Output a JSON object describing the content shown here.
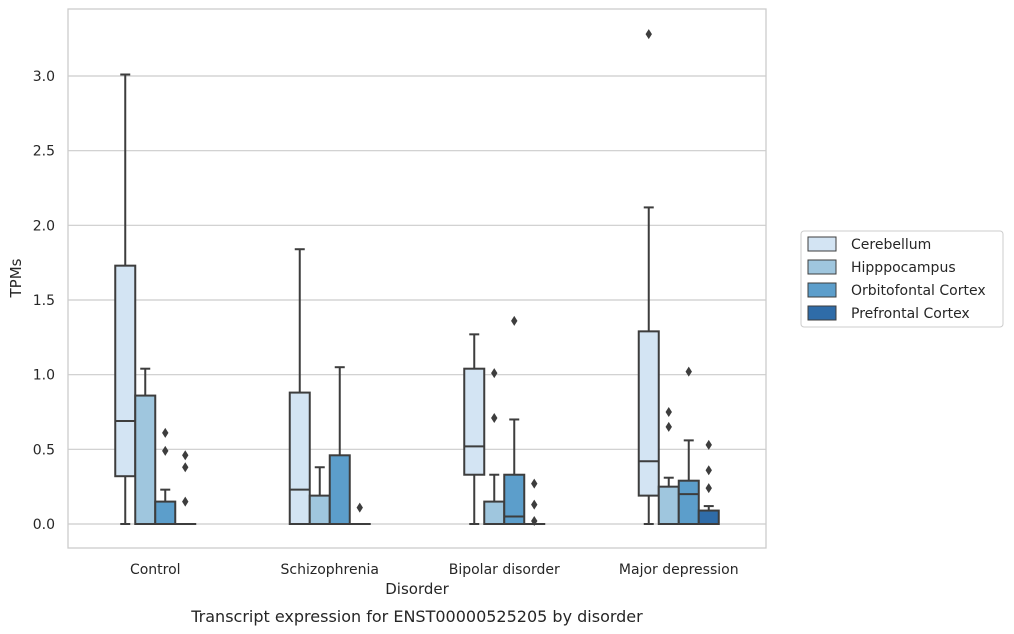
{
  "chart_data": {
    "type": "box",
    "title": "",
    "caption": "Transcript expression for ENST00000525205 by disorder",
    "xlabel": "Disorder",
    "ylabel": "TPMs",
    "ylim": [
      -0.16,
      3.45
    ],
    "yticks": [
      0.0,
      0.5,
      1.0,
      1.5,
      2.0,
      2.5,
      3.0
    ],
    "ytick_labels": [
      "0.0",
      "0.5",
      "1.0",
      "1.5",
      "2.0",
      "2.5",
      "3.0"
    ],
    "grid": "horizontal",
    "legend_position": "right",
    "categories": [
      "Control",
      "Schizophrenia",
      "Bipolar disorder",
      "Major depression"
    ],
    "series": [
      {
        "name": "Cerebellum",
        "color": "#d3e4f3",
        "boxes": [
          {
            "whisker_low": 0.0,
            "q1": 0.32,
            "median": 0.69,
            "q3": 1.73,
            "whisker_high": 3.01,
            "outliers": []
          },
          {
            "whisker_low": 0.0,
            "q1": 0.0,
            "median": 0.23,
            "q3": 0.88,
            "whisker_high": 1.84,
            "outliers": []
          },
          {
            "whisker_low": 0.0,
            "q1": 0.33,
            "median": 0.52,
            "q3": 1.04,
            "whisker_high": 1.27,
            "outliers": []
          },
          {
            "whisker_low": 0.0,
            "q1": 0.19,
            "median": 0.42,
            "q3": 1.29,
            "whisker_high": 2.12,
            "outliers": [
              3.28
            ]
          }
        ]
      },
      {
        "name": "Hipppocampus",
        "color": "#9fc6de",
        "boxes": [
          {
            "whisker_low": 0.0,
            "q1": 0.0,
            "median": 0.0,
            "q3": 0.86,
            "whisker_high": 1.04,
            "outliers": []
          },
          {
            "whisker_low": 0.0,
            "q1": 0.0,
            "median": 0.0,
            "q3": 0.19,
            "whisker_high": 0.38,
            "outliers": []
          },
          {
            "whisker_low": 0.0,
            "q1": 0.0,
            "median": 0.0,
            "q3": 0.15,
            "whisker_high": 0.33,
            "outliers": [
              0.71,
              1.01
            ]
          },
          {
            "whisker_low": 0.0,
            "q1": 0.0,
            "median": 0.0,
            "q3": 0.25,
            "whisker_high": 0.31,
            "outliers": [
              0.65,
              0.75
            ]
          }
        ]
      },
      {
        "name": "Orbitofontal Cortex",
        "color": "#5c9ecb",
        "boxes": [
          {
            "whisker_low": 0.0,
            "q1": 0.0,
            "median": 0.0,
            "q3": 0.15,
            "whisker_high": 0.23,
            "outliers": [
              0.49,
              0.61
            ]
          },
          {
            "whisker_low": 0.0,
            "q1": 0.0,
            "median": 0.0,
            "q3": 0.46,
            "whisker_high": 1.05,
            "outliers": []
          },
          {
            "whisker_low": 0.0,
            "q1": 0.0,
            "median": 0.05,
            "q3": 0.33,
            "whisker_high": 0.7,
            "outliers": [
              1.36
            ]
          },
          {
            "whisker_low": 0.0,
            "q1": 0.0,
            "median": 0.2,
            "q3": 0.29,
            "whisker_high": 0.56,
            "outliers": [
              1.02
            ]
          }
        ]
      },
      {
        "name": "Prefrontal Cortex",
        "color": "#2f6ca8",
        "boxes": [
          {
            "whisker_low": 0.0,
            "q1": 0.0,
            "median": 0.0,
            "q3": 0.0,
            "whisker_high": 0.0,
            "outliers": [
              0.15,
              0.38,
              0.46
            ]
          },
          {
            "whisker_low": 0.0,
            "q1": 0.0,
            "median": 0.0,
            "q3": 0.0,
            "whisker_high": 0.0,
            "outliers": [
              0.11
            ]
          },
          {
            "whisker_low": 0.0,
            "q1": 0.0,
            "median": 0.0,
            "q3": 0.0,
            "whisker_high": 0.0,
            "outliers": [
              0.02,
              0.13,
              0.27
            ]
          },
          {
            "whisker_low": 0.0,
            "q1": 0.0,
            "median": 0.0,
            "q3": 0.09,
            "whisker_high": 0.12,
            "outliers": [
              0.24,
              0.36,
              0.53
            ]
          }
        ]
      }
    ]
  }
}
